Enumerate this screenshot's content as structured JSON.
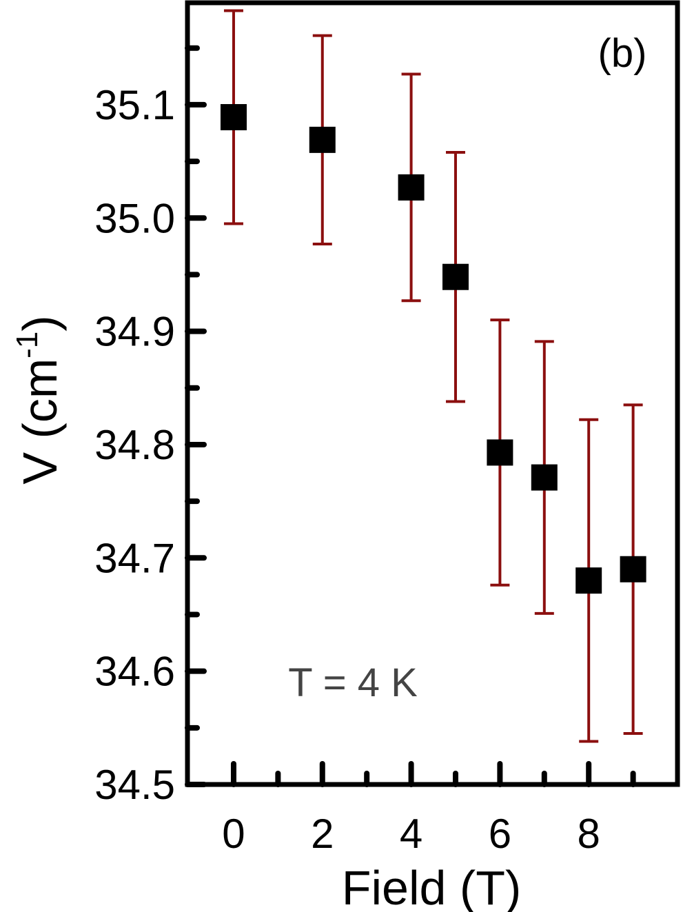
{
  "chart_data": {
    "type": "scatter",
    "xlabel": "Field (T)",
    "ylabel": {
      "main": "V (cm",
      "sup": "-1",
      "end": ")"
    },
    "annotations": [
      "(b)",
      "T = 4 K"
    ],
    "series": [
      {
        "color": "#000000",
        "error_color": "#8b0f0f",
        "x": [
          0,
          2,
          4,
          5,
          6,
          7,
          8,
          9
        ],
        "values": [
          35.089,
          35.069,
          35.027,
          34.948,
          34.793,
          34.771,
          34.68,
          34.69
        ],
        "errors": [
          0.094,
          0.092,
          0.1,
          0.11,
          0.117,
          0.12,
          0.142,
          0.145
        ]
      }
    ],
    "xlim": [
      -1.04,
      10.0
    ],
    "xticks": [
      0,
      2,
      4,
      6,
      8
    ],
    "ylim": [
      34.5,
      35.19
    ],
    "yticks": [
      {
        "value": 34.5,
        "label": "34.5"
      },
      {
        "value": 34.6,
        "label": "34.6"
      },
      {
        "value": 34.7,
        "label": "34.7"
      },
      {
        "value": 34.8,
        "label": "34.8"
      },
      {
        "value": 34.9,
        "label": "34.9"
      },
      {
        "value": 35.0,
        "label": "35.0"
      },
      {
        "value": 35.1,
        "label": "35.1"
      }
    ]
  }
}
